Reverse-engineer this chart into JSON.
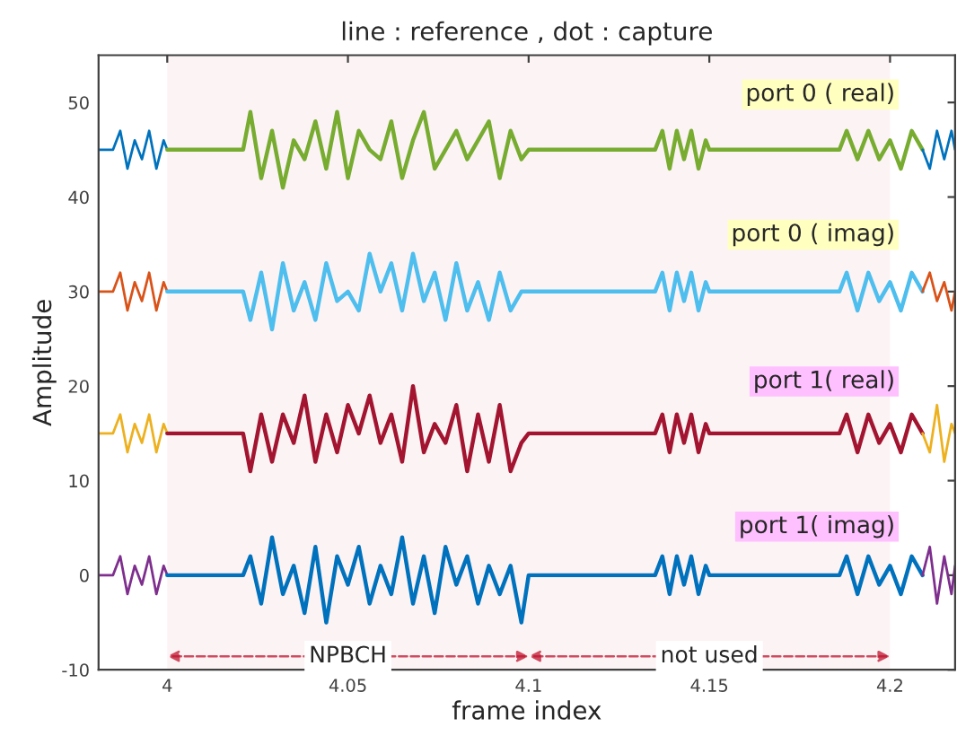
{
  "chart_data": {
    "type": "line",
    "title": "line : reference , dot : capture",
    "xlabel": "frame index",
    "ylabel": "Amplitude",
    "xlim": [
      3.981,
      4.218
    ],
    "xticks": [
      4,
      4.05,
      4.1,
      4.15,
      4.2
    ],
    "ylim": [
      -10,
      55
    ],
    "yticks": [
      -10,
      0,
      10,
      20,
      30,
      40,
      50
    ],
    "grid": false,
    "annotations": [
      "port 0 ( real)",
      "port 0 ( imag)",
      "port 1( real)",
      "port 1( imag)"
    ],
    "bands": [
      {
        "axis": "x",
        "from": 4.0,
        "to": 4.1,
        "label": "NPBCH",
        "color": "#c0142f"
      },
      {
        "axis": "x",
        "from": 4.1,
        "to": 4.2,
        "label": "not used",
        "color": "#c0142f"
      }
    ],
    "series": [
      {
        "color": "#0072bd",
        "x": [
          3.981,
          3.985,
          3.987,
          3.989,
          3.991,
          3.993,
          3.995,
          3.997,
          3.999,
          4.0
        ],
        "values": [
          45,
          45,
          47,
          43,
          46,
          44,
          47,
          43,
          46,
          45
        ]
      },
      {
        "color": "#77ac30",
        "x": [
          4.0,
          4.021,
          4.023,
          4.026,
          4.029,
          4.032,
          4.035,
          4.038,
          4.041,
          4.044,
          4.047,
          4.05,
          4.053,
          4.056,
          4.059,
          4.062,
          4.065,
          4.068,
          4.071,
          4.074,
          4.077,
          4.08,
          4.083,
          4.086,
          4.089,
          4.092,
          4.095,
          4.098,
          4.1,
          4.135,
          4.137,
          4.139,
          4.141,
          4.143,
          4.145,
          4.147,
          4.149,
          4.15,
          4.186,
          4.188,
          4.191,
          4.194,
          4.197,
          4.2,
          4.203,
          4.206,
          4.209
        ],
        "values": [
          45,
          45,
          49,
          42,
          47,
          41,
          46,
          44,
          48,
          43,
          49,
          42,
          47,
          45,
          44,
          48,
          42,
          46,
          49,
          43,
          45,
          47,
          44,
          46,
          48,
          42,
          47,
          44,
          45,
          45,
          47,
          43,
          47,
          44,
          47,
          43,
          46,
          45,
          45,
          47,
          44,
          47,
          44,
          46,
          43,
          47,
          45
        ]
      },
      {
        "color": "#0072bd",
        "x": [
          4.209,
          4.211,
          4.213,
          4.215,
          4.217,
          4.218
        ],
        "values": [
          45,
          43,
          47,
          44,
          47,
          45
        ]
      },
      {
        "color": "#d95319",
        "x": [
          3.981,
          3.985,
          3.987,
          3.989,
          3.991,
          3.993,
          3.995,
          3.997,
          3.999,
          4.0
        ],
        "values": [
          30,
          30,
          32,
          28,
          31,
          29,
          32,
          28,
          31,
          30
        ]
      },
      {
        "color": "#4dbeee",
        "x": [
          4.0,
          4.021,
          4.023,
          4.026,
          4.029,
          4.032,
          4.035,
          4.038,
          4.041,
          4.044,
          4.047,
          4.05,
          4.053,
          4.056,
          4.059,
          4.062,
          4.065,
          4.068,
          4.071,
          4.074,
          4.077,
          4.08,
          4.083,
          4.086,
          4.089,
          4.092,
          4.095,
          4.098,
          4.1,
          4.135,
          4.137,
          4.139,
          4.141,
          4.143,
          4.145,
          4.147,
          4.149,
          4.15,
          4.186,
          4.188,
          4.191,
          4.194,
          4.197,
          4.2,
          4.203,
          4.206,
          4.209
        ],
        "values": [
          30,
          30,
          27,
          32,
          26,
          33,
          28,
          31,
          27,
          33,
          29,
          30,
          28,
          34,
          30,
          33,
          28,
          34,
          29,
          32,
          27,
          33,
          28,
          31,
          27,
          32,
          28,
          30,
          30,
          30,
          32,
          28,
          32,
          29,
          32,
          28,
          31,
          30,
          30,
          32,
          28,
          32,
          29,
          31,
          28,
          32,
          30
        ]
      },
      {
        "color": "#d95319",
        "x": [
          4.209,
          4.211,
          4.213,
          4.215,
          4.217,
          4.218
        ],
        "values": [
          30,
          32,
          29,
          31,
          28,
          30
        ]
      },
      {
        "color": "#edb120",
        "x": [
          3.981,
          3.985,
          3.987,
          3.989,
          3.991,
          3.993,
          3.995,
          3.997,
          3.999,
          4.0
        ],
        "values": [
          15,
          15,
          17,
          13,
          16,
          14,
          17,
          13,
          16,
          15
        ]
      },
      {
        "color": "#a2142f",
        "x": [
          4.0,
          4.021,
          4.023,
          4.026,
          4.029,
          4.032,
          4.035,
          4.038,
          4.041,
          4.044,
          4.047,
          4.05,
          4.053,
          4.056,
          4.059,
          4.062,
          4.065,
          4.068,
          4.071,
          4.074,
          4.077,
          4.08,
          4.083,
          4.086,
          4.089,
          4.092,
          4.095,
          4.098,
          4.1,
          4.135,
          4.137,
          4.139,
          4.141,
          4.143,
          4.145,
          4.147,
          4.149,
          4.15,
          4.186,
          4.188,
          4.191,
          4.194,
          4.197,
          4.2,
          4.203,
          4.206,
          4.209
        ],
        "values": [
          15,
          15,
          11,
          17,
          12,
          17,
          14,
          19,
          12,
          17,
          13,
          18,
          15,
          19,
          14,
          17,
          12,
          20,
          13,
          16,
          14,
          18,
          11,
          17,
          12,
          18,
          11,
          14,
          15,
          15,
          17,
          13,
          17,
          14,
          17,
          13,
          16,
          15,
          15,
          17,
          13,
          17,
          14,
          16,
          13,
          17,
          15
        ]
      },
      {
        "color": "#edb120",
        "x": [
          4.209,
          4.211,
          4.213,
          4.215,
          4.217,
          4.218
        ],
        "values": [
          15,
          13,
          18,
          12,
          16,
          15
        ]
      },
      {
        "color": "#7e2f8e",
        "x": [
          3.981,
          3.985,
          3.987,
          3.989,
          3.991,
          3.993,
          3.995,
          3.997,
          3.999,
          4.0
        ],
        "values": [
          0,
          0,
          2,
          -2,
          1,
          -1,
          2,
          -2,
          1,
          0
        ]
      },
      {
        "color": "#0072bd",
        "x": [
          4.0,
          4.021,
          4.023,
          4.026,
          4.029,
          4.032,
          4.035,
          4.038,
          4.041,
          4.044,
          4.047,
          4.05,
          4.053,
          4.056,
          4.059,
          4.062,
          4.065,
          4.068,
          4.071,
          4.074,
          4.077,
          4.08,
          4.083,
          4.086,
          4.089,
          4.092,
          4.095,
          4.098,
          4.1,
          4.135,
          4.137,
          4.139,
          4.141,
          4.143,
          4.145,
          4.147,
          4.149,
          4.15,
          4.186,
          4.188,
          4.191,
          4.194,
          4.197,
          4.2,
          4.203,
          4.206,
          4.209
        ],
        "values": [
          0,
          0,
          2,
          -3,
          4,
          -2,
          1,
          -4,
          3,
          -5,
          2,
          -1,
          3,
          -3,
          1,
          -2,
          4,
          -3,
          2,
          -4,
          3,
          -1,
          2,
          -3,
          1,
          -2,
          1,
          -5,
          0,
          0,
          2,
          -2,
          2,
          -1,
          2,
          -2,
          1,
          0,
          0,
          2,
          -2,
          2,
          -1,
          1,
          -2,
          2,
          0
        ]
      },
      {
        "color": "#7e2f8e",
        "x": [
          4.209,
          4.211,
          4.213,
          4.215,
          4.217,
          4.218
        ],
        "values": [
          0,
          3,
          -3,
          2,
          -2,
          1
        ]
      }
    ]
  }
}
